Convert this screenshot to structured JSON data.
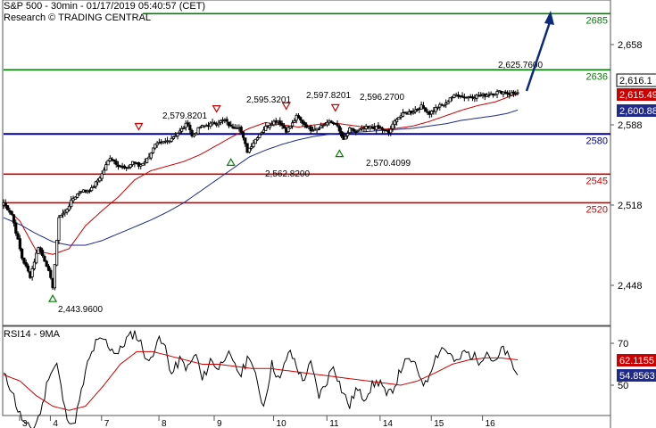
{
  "header": {
    "title": "S&P 500 - 30min - 01/17/2019 05:40:57 (CET)",
    "subtitle": "Research © TRADING CENTRAL"
  },
  "colors": {
    "resistance": "#008000",
    "pivot": "#00008b",
    "support": "#cc0000",
    "ma_fast": "#cc0000",
    "ma_slow": "#1f2a8a",
    "candle": "#000000",
    "arrow": "#0b2a7a",
    "badge_last": "#000000",
    "badge_fast": "#cc0000",
    "badge_slow": "#1f2a8a",
    "rsi_line": "#000000",
    "rsi_ma": "#cc0000"
  },
  "chart_data": [
    {
      "type": "candlestick",
      "yaxis": {
        "ticks": [
          2658,
          2588,
          2518,
          2448
        ],
        "tick_labels": [
          "2,658",
          "2,588",
          "2,518",
          "2,448"
        ]
      },
      "xaxis": {
        "ticks": [
          3,
          4,
          7,
          8,
          9,
          10,
          11,
          14,
          15,
          16
        ],
        "tick_labels": [
          "3",
          "4",
          "7",
          "8",
          "9",
          "10",
          "11",
          "14",
          "15",
          "16"
        ]
      },
      "levels": [
        {
          "value": 2685,
          "label": "2685",
          "kind": "resistance"
        },
        {
          "value": 2636,
          "label": "2636",
          "kind": "resistance"
        },
        {
          "value": 2580,
          "label": "2580",
          "kind": "pivot"
        },
        {
          "value": 2545,
          "label": "2545",
          "kind": "support"
        },
        {
          "value": 2520,
          "label": "2520",
          "kind": "support"
        }
      ],
      "price_badges": [
        {
          "label": "2,616.1",
          "value": 2616.1,
          "kind": "last"
        },
        {
          "label": "2,615.49",
          "value": 2615.49,
          "kind": "fast"
        },
        {
          "label": "2,600.88",
          "value": 2600.88,
          "kind": "slow"
        }
      ],
      "annotations": [
        {
          "text": "2,443.9600",
          "kind": "low"
        },
        {
          "text": "2,579.8201",
          "kind": "high"
        },
        {
          "text": "2,595.3201",
          "kind": "high"
        },
        {
          "text": "2,562.8200",
          "kind": "low"
        },
        {
          "text": "2,597.8201",
          "kind": "high"
        },
        {
          "text": "2,596.2700",
          "kind": "high"
        },
        {
          "text": "2,570.4099",
          "kind": "low"
        },
        {
          "text": "2,625.7600",
          "kind": "target"
        }
      ],
      "series": {
        "anchors_time": [
          0,
          4,
          9,
          13,
          17,
          21,
          24,
          26,
          27,
          30,
          34,
          38,
          40,
          43,
          48,
          52,
          56,
          60,
          63,
          66,
          70,
          74,
          80,
          86,
          90,
          92,
          96,
          100,
          104,
          108,
          111,
          115,
          119,
          124,
          128,
          131,
          134,
          138,
          141,
          143,
          146,
          150,
          154,
          158,
          162,
          166,
          169,
          172,
          176,
          180,
          184,
          188,
          192,
          196,
          200,
          204,
          208,
          212,
          216,
          218,
          222,
          226,
          230,
          235,
          239,
          243,
          247,
          251
        ],
        "anchors_close": [
          2520,
          2510,
          2472,
          2456,
          2482,
          2466,
          2447,
          2486,
          2508,
          2512,
          2524,
          2531,
          2530,
          2532,
          2545,
          2560,
          2553,
          2549,
          2556,
          2552,
          2558,
          2570,
          2574,
          2582,
          2590,
          2578,
          2586,
          2588,
          2590,
          2592,
          2586,
          2587,
          2565,
          2578,
          2586,
          2590,
          2592,
          2583,
          2589,
          2595,
          2590,
          2584,
          2586,
          2590,
          2590,
          2574,
          2584,
          2582,
          2585,
          2586,
          2585,
          2581,
          2594,
          2598,
          2600,
          2604,
          2598,
          2604,
          2606,
          2612,
          2614,
          2612,
          2613,
          2614,
          2616,
          2617,
          2615,
          2616.1
        ],
        "ma_fast_anchors": [
          2518,
          2504,
          2478,
          2475,
          2480,
          2500,
          2513,
          2525,
          2540,
          2548,
          2552,
          2556,
          2562,
          2570,
          2578,
          2585,
          2590,
          2588,
          2586,
          2588,
          2590,
          2588,
          2586,
          2584,
          2585,
          2587,
          2591,
          2596,
          2601,
          2605,
          2608,
          2612,
          2615.49
        ],
        "ma_slow_anchors": [
          2507,
          2501,
          2493,
          2486,
          2483,
          2483,
          2487,
          2493,
          2499,
          2505,
          2512,
          2520,
          2530,
          2540,
          2550,
          2560,
          2566,
          2571,
          2575,
          2578,
          2580,
          2581,
          2582,
          2583,
          2584,
          2585,
          2587,
          2589,
          2592,
          2594,
          2596,
          2598,
          2600.88
        ],
        "ma_anchors_time": [
          0,
          8,
          16,
          24,
          32,
          40,
          48,
          56,
          64,
          72,
          80,
          88,
          96,
          104,
          112,
          120,
          128,
          136,
          144,
          152,
          160,
          168,
          176,
          184,
          192,
          200,
          208,
          216,
          224,
          232,
          240,
          246,
          251
        ]
      }
    },
    {
      "type": "line",
      "title": "RSI14 - 9MA",
      "yaxis": {
        "ticks": [
          70,
          50
        ],
        "tick_labels": [
          "70",
          "50"
        ]
      },
      "price_badges": [
        {
          "label": "62.1155",
          "value": 62.1155,
          "kind": "ma"
        },
        {
          "label": "54.8563",
          "value": 54.8563,
          "kind": "rsi"
        }
      ],
      "series": {
        "rsi_anchors": [
          55,
          48,
          38,
          30,
          30,
          40,
          55,
          60,
          38,
          30,
          42,
          60,
          70,
          72,
          68,
          65,
          72,
          75,
          70,
          60,
          72,
          68,
          55,
          62,
          58,
          65,
          52,
          62,
          58,
          66,
          60,
          55,
          65,
          50,
          40,
          60,
          52,
          66,
          62,
          52,
          60,
          45,
          50,
          60,
          48,
          40,
          48,
          44,
          50,
          52,
          44,
          50,
          60,
          62,
          57,
          50,
          62,
          68,
          66,
          60,
          66,
          64,
          62,
          66,
          60,
          68,
          62,
          54.8563
        ],
        "rsi_ma_anchors": [
          55,
          52,
          45,
          40,
          38,
          40,
          50,
          60,
          66,
          66,
          64,
          62,
          60,
          60,
          59,
          58,
          58,
          57,
          56,
          55,
          54,
          53,
          52,
          51,
          50,
          52,
          56,
          60,
          62,
          63,
          63,
          62.1155
        ]
      }
    }
  ]
}
